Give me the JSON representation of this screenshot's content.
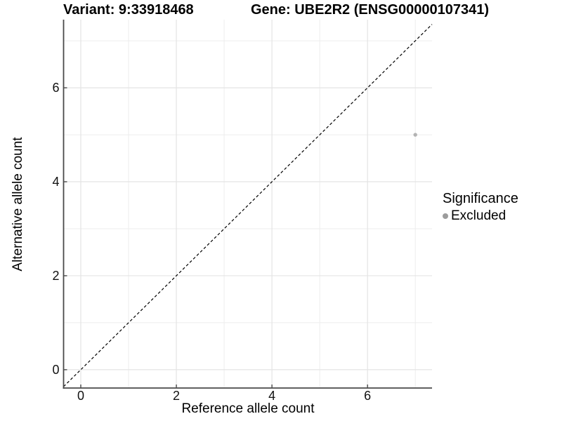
{
  "title": {
    "variant": "Variant: 9:33918468",
    "gene": "Gene: UBE2R2 (ENSG00000107341)"
  },
  "chart_data": {
    "type": "scatter",
    "title": "Variant: 9:33918468   Gene: UBE2R2 (ENSG00000107341)",
    "xlabel": "Reference allele count",
    "ylabel": "Alternative allele count",
    "xlim": [
      -0.36,
      7.35
    ],
    "ylim": [
      -0.39,
      7.45
    ],
    "x_major_ticks": [
      0,
      2,
      4,
      6
    ],
    "x_minor_ticks": [
      1,
      3,
      5,
      7
    ],
    "y_major_ticks": [
      0,
      2,
      4,
      6
    ],
    "y_minor_ticks": [
      1,
      3,
      5,
      7
    ],
    "grid": "on",
    "series": [
      {
        "name": "Excluded",
        "points": [
          {
            "x": 7,
            "y": 5
          }
        ]
      }
    ],
    "reference_line": {
      "kind": "identity",
      "slope": 1,
      "intercept": 0,
      "style": "dashed"
    },
    "legend": {
      "title": "Significance",
      "position": "right",
      "entries": [
        {
          "label": "Excluded",
          "color": "#9c9c9c"
        }
      ]
    }
  },
  "colors": {
    "point": "#b3b3b3",
    "legend_point": "#9c9c9c",
    "grid_major": "#e4e4e4",
    "grid_minor": "#ededed",
    "axis": "#4a4a4a",
    "reference_line": "#000000"
  }
}
